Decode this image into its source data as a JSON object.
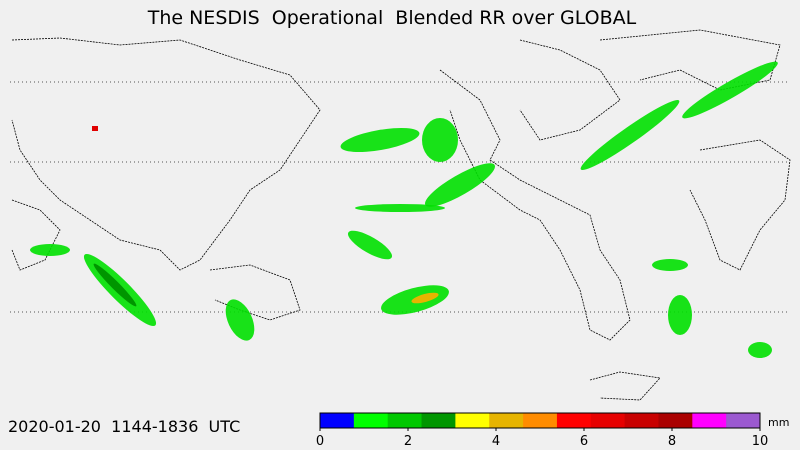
{
  "title": "The NESDIS  Operational  Blended RR over GLOBAL",
  "timestamp": "2020-01-20  1144-1836  UTC",
  "colorbar": {
    "unit": "mm",
    "ticks": [
      0,
      2,
      4,
      6,
      8,
      10
    ],
    "colors": [
      "#0000ff",
      "#00ff00",
      "#00c800",
      "#009600",
      "#ffff00",
      "#e6b400",
      "#ff8c00",
      "#ff0000",
      "#e60000",
      "#c80000",
      "#aa0000",
      "#ff00ff",
      "#9b59d0"
    ]
  }
}
